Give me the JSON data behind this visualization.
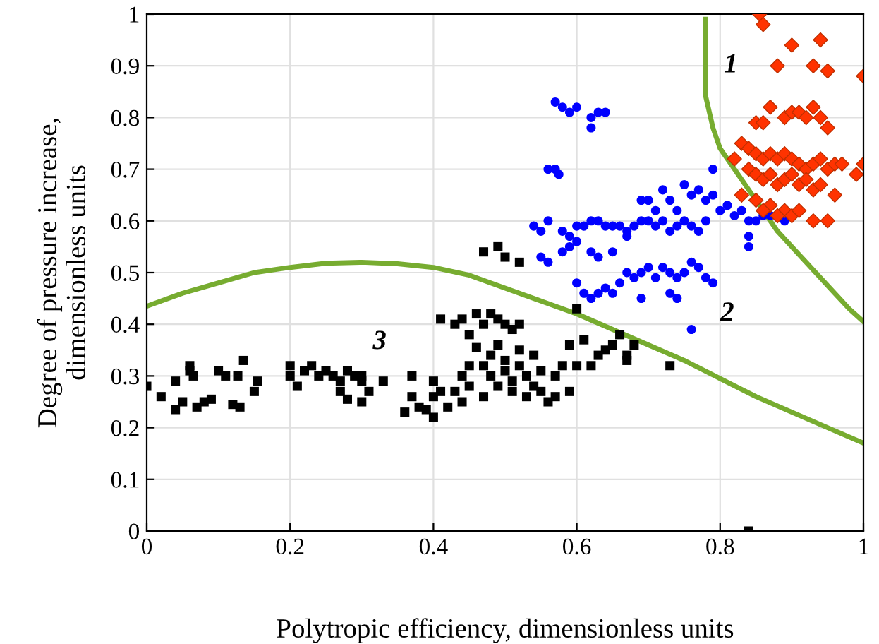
{
  "chart_data": {
    "type": "scatter",
    "xlabel": "Polytropic efficiency, dimensionless units",
    "ylabel": "Degree of pressure increase,\ndimensionless units",
    "xlim": [
      0,
      1
    ],
    "ylim": [
      0,
      1
    ],
    "xticks": [
      0,
      0.2,
      0.4,
      0.6,
      0.8,
      1
    ],
    "yticks": [
      0,
      0.1,
      0.2,
      0.3,
      0.4,
      0.5,
      0.6,
      0.7,
      0.8,
      0.9,
      1
    ],
    "grid": true,
    "legend": false,
    "annotations": [
      "1",
      "2",
      "3"
    ],
    "series": [
      {
        "marker": "square",
        "color": "#000000",
        "x": [
          0.0,
          0.02,
          0.04,
          0.04,
          0.05,
          0.06,
          0.065,
          0.06,
          0.07,
          0.08,
          0.09,
          0.1,
          0.11,
          0.12,
          0.13,
          0.127,
          0.135,
          0.15,
          0.155,
          0.2,
          0.2,
          0.21,
          0.22,
          0.23,
          0.24,
          0.25,
          0.26,
          0.27,
          0.28,
          0.29,
          0.3,
          0.3,
          0.27,
          0.28,
          0.3,
          0.31,
          0.33,
          0.36,
          0.37,
          0.37,
          0.38,
          0.39,
          0.4,
          0.4,
          0.4,
          0.41,
          0.42,
          0.43,
          0.44,
          0.44,
          0.45,
          0.45,
          0.46,
          0.47,
          0.47,
          0.48,
          0.48,
          0.49,
          0.49,
          0.5,
          0.5,
          0.51,
          0.51,
          0.52,
          0.52,
          0.53,
          0.53,
          0.54,
          0.54,
          0.55,
          0.55,
          0.56,
          0.57,
          0.57,
          0.58,
          0.59,
          0.59,
          0.6,
          0.41,
          0.43,
          0.44,
          0.45,
          0.46,
          0.47,
          0.48,
          0.49,
          0.5,
          0.51,
          0.52,
          0.47,
          0.49,
          0.5,
          0.52,
          0.6,
          0.61,
          0.62,
          0.63,
          0.64,
          0.65,
          0.66,
          0.67,
          0.68,
          0.67,
          0.73,
          0.84
        ],
        "values": [
          0.28,
          0.26,
          0.29,
          0.235,
          0.25,
          0.31,
          0.3,
          0.32,
          0.24,
          0.25,
          0.255,
          0.31,
          0.3,
          0.245,
          0.24,
          0.3,
          0.33,
          0.27,
          0.29,
          0.3,
          0.32,
          0.28,
          0.31,
          0.32,
          0.3,
          0.31,
          0.3,
          0.29,
          0.31,
          0.3,
          0.29,
          0.3,
          0.27,
          0.255,
          0.25,
          0.27,
          0.29,
          0.23,
          0.26,
          0.3,
          0.24,
          0.235,
          0.22,
          0.26,
          0.29,
          0.27,
          0.24,
          0.27,
          0.3,
          0.25,
          0.32,
          0.28,
          0.355,
          0.32,
          0.26,
          0.34,
          0.3,
          0.28,
          0.36,
          0.33,
          0.31,
          0.29,
          0.27,
          0.35,
          0.32,
          0.26,
          0.3,
          0.34,
          0.28,
          0.27,
          0.31,
          0.25,
          0.3,
          0.26,
          0.32,
          0.27,
          0.36,
          0.32,
          0.41,
          0.4,
          0.41,
          0.38,
          0.42,
          0.4,
          0.42,
          0.41,
          0.4,
          0.39,
          0.4,
          0.54,
          0.55,
          0.53,
          0.52,
          0.43,
          0.37,
          0.32,
          0.34,
          0.35,
          0.36,
          0.38,
          0.34,
          0.36,
          0.33,
          0.32,
          0.0
        ]
      },
      {
        "marker": "circle",
        "color": "#0000ff",
        "x": [
          0.57,
          0.58,
          0.59,
          0.6,
          0.62,
          0.63,
          0.64,
          0.62,
          0.56,
          0.57,
          0.575,
          0.54,
          0.55,
          0.56,
          0.58,
          0.59,
          0.6,
          0.61,
          0.62,
          0.63,
          0.64,
          0.65,
          0.66,
          0.67,
          0.68,
          0.69,
          0.7,
          0.71,
          0.72,
          0.73,
          0.74,
          0.75,
          0.76,
          0.77,
          0.78,
          0.55,
          0.56,
          0.58,
          0.59,
          0.6,
          0.62,
          0.63,
          0.65,
          0.67,
          0.69,
          0.7,
          0.71,
          0.72,
          0.73,
          0.74,
          0.75,
          0.76,
          0.77,
          0.78,
          0.79,
          0.8,
          0.81,
          0.82,
          0.83,
          0.84,
          0.85,
          0.86,
          0.87,
          0.89,
          0.79,
          0.84,
          0.84,
          0.6,
          0.61,
          0.62,
          0.63,
          0.64,
          0.65,
          0.66,
          0.67,
          0.68,
          0.69,
          0.7,
          0.71,
          0.72,
          0.73,
          0.74,
          0.75,
          0.76,
          0.77,
          0.78,
          0.79,
          0.69,
          0.73,
          0.74,
          0.76
        ],
        "values": [
          0.83,
          0.82,
          0.81,
          0.82,
          0.8,
          0.81,
          0.81,
          0.78,
          0.7,
          0.7,
          0.69,
          0.59,
          0.58,
          0.6,
          0.58,
          0.57,
          0.59,
          0.59,
          0.6,
          0.6,
          0.59,
          0.59,
          0.59,
          0.58,
          0.59,
          0.6,
          0.6,
          0.59,
          0.6,
          0.58,
          0.59,
          0.6,
          0.59,
          0.58,
          0.6,
          0.53,
          0.52,
          0.54,
          0.55,
          0.56,
          0.54,
          0.53,
          0.54,
          0.57,
          0.64,
          0.64,
          0.62,
          0.66,
          0.64,
          0.62,
          0.67,
          0.65,
          0.66,
          0.64,
          0.65,
          0.62,
          0.63,
          0.61,
          0.62,
          0.6,
          0.6,
          0.61,
          0.61,
          0.6,
          0.7,
          0.57,
          0.55,
          0.48,
          0.46,
          0.45,
          0.46,
          0.47,
          0.46,
          0.48,
          0.5,
          0.49,
          0.5,
          0.51,
          0.49,
          0.51,
          0.5,
          0.49,
          0.5,
          0.52,
          0.51,
          0.49,
          0.48,
          0.45,
          0.46,
          0.45,
          0.39
        ]
      },
      {
        "marker": "diamond",
        "color": "#ff3300",
        "x": [
          0.855,
          0.86,
          0.9,
          0.94,
          0.88,
          0.93,
          0.95,
          1.0,
          0.87,
          0.85,
          0.86,
          0.89,
          0.9,
          0.91,
          0.92,
          0.93,
          0.94,
          0.95,
          0.83,
          0.84,
          0.85,
          0.86,
          0.87,
          0.88,
          0.89,
          0.9,
          0.91,
          0.92,
          0.93,
          0.94,
          0.95,
          0.96,
          0.97,
          1.0,
          0.82,
          0.84,
          0.85,
          0.86,
          0.87,
          0.88,
          0.89,
          0.9,
          0.91,
          0.92,
          0.93,
          0.94,
          0.96,
          0.99,
          0.83,
          0.85,
          0.87,
          0.89,
          0.9,
          0.91,
          0.93,
          0.95,
          0.88,
          0.86
        ],
        "values": [
          1.0,
          0.98,
          0.94,
          0.95,
          0.9,
          0.9,
          0.89,
          0.88,
          0.82,
          0.79,
          0.79,
          0.8,
          0.81,
          0.81,
          0.8,
          0.82,
          0.8,
          0.78,
          0.75,
          0.74,
          0.73,
          0.72,
          0.73,
          0.72,
          0.73,
          0.72,
          0.71,
          0.7,
          0.71,
          0.72,
          0.7,
          0.71,
          0.71,
          0.71,
          0.72,
          0.7,
          0.69,
          0.68,
          0.69,
          0.67,
          0.68,
          0.69,
          0.67,
          0.68,
          0.66,
          0.67,
          0.65,
          0.69,
          0.65,
          0.64,
          0.63,
          0.62,
          0.61,
          0.62,
          0.6,
          0.6,
          0.61,
          0.62
        ]
      },
      {
        "type": "line",
        "color": "#77ac30",
        "x": [
          0,
          0.05,
          0.1,
          0.15,
          0.2,
          0.25,
          0.3,
          0.35,
          0.4,
          0.45,
          0.5,
          0.55,
          0.6,
          0.65,
          0.7,
          0.75,
          0.8,
          0.85,
          0.9,
          0.95,
          1.0
        ],
        "values": [
          0.435,
          0.46,
          0.48,
          0.5,
          0.51,
          0.518,
          0.52,
          0.517,
          0.51,
          0.495,
          0.47,
          0.445,
          0.42,
          0.39,
          0.36,
          0.33,
          0.295,
          0.26,
          0.23,
          0.2,
          0.17
        ]
      },
      {
        "type": "line",
        "color": "#77ac30",
        "x": [
          0.78,
          0.78,
          0.79,
          0.8,
          0.82,
          0.84,
          0.86,
          0.88,
          0.9,
          0.92,
          0.94,
          0.96,
          0.98,
          1.0
        ],
        "values": [
          0.99,
          0.84,
          0.78,
          0.74,
          0.7,
          0.66,
          0.62,
          0.58,
          0.55,
          0.52,
          0.49,
          0.46,
          0.43,
          0.405
        ]
      }
    ]
  }
}
